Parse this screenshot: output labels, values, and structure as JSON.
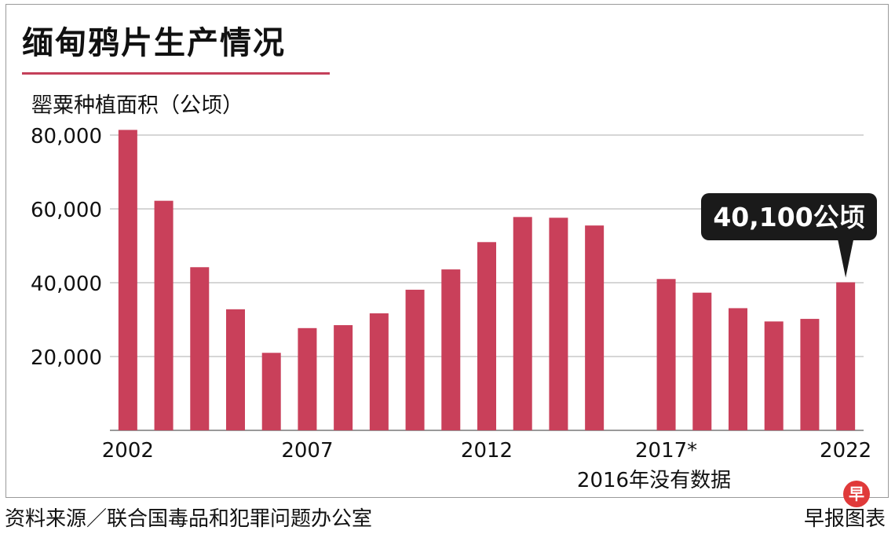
{
  "title": "缅甸鸦片生产情况",
  "accent_color": "#c4405a",
  "bar_color": "#c9405a",
  "callout": {
    "text": "40,100公顷",
    "year": 2022
  },
  "note": "2016年没有数据",
  "footer": {
    "source": "资料来源／联合国毒品和犯罪问题办公室",
    "credit": "早报图表",
    "logo_text": "早"
  },
  "chart_data": {
    "type": "bar",
    "title": "缅甸鸦片生产情况",
    "ylabel": "罂粟种植面积（公顷）",
    "xlabel": "",
    "ylim": [
      0,
      80000
    ],
    "grid": true,
    "y_ticks": [
      {
        "value": 20000,
        "label": "20,000"
      },
      {
        "value": 40000,
        "label": "40,000"
      },
      {
        "value": 60000,
        "label": "60,000"
      },
      {
        "value": 80000,
        "label": "80,000"
      }
    ],
    "x_tick_labels": [
      {
        "year": 2002,
        "label": "2002"
      },
      {
        "year": 2007,
        "label": "2007"
      },
      {
        "year": 2012,
        "label": "2012"
      },
      {
        "year": 2017,
        "label": "2017*"
      },
      {
        "year": 2022,
        "label": "2022"
      }
    ],
    "categories": [
      2002,
      2003,
      2004,
      2005,
      2006,
      2007,
      2008,
      2009,
      2010,
      2011,
      2012,
      2013,
      2014,
      2015,
      2017,
      2018,
      2019,
      2020,
      2021,
      2022
    ],
    "values": [
      81400,
      62200,
      44200,
      32800,
      21000,
      27700,
      28500,
      31700,
      38100,
      43600,
      51000,
      57800,
      57600,
      55500,
      41000,
      37300,
      33100,
      29500,
      30200,
      40100
    ]
  }
}
